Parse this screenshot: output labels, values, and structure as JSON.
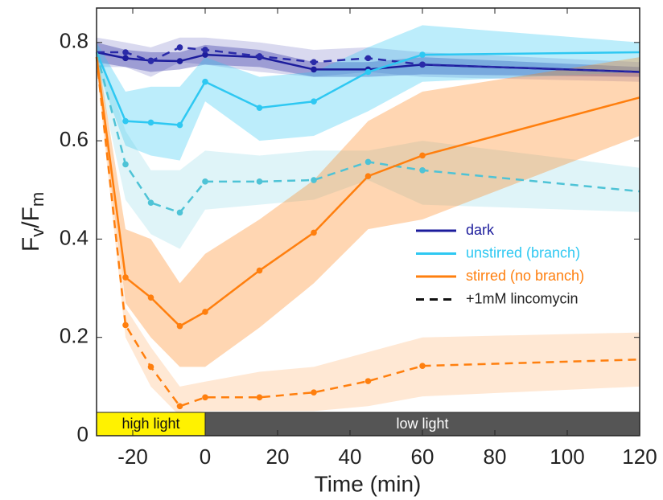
{
  "chart_data": {
    "type": "line",
    "xlabel": "Time (min)",
    "ylabel": [
      "F",
      "v",
      "/F",
      "m"
    ],
    "xlim": [
      -30,
      120
    ],
    "ylim": [
      0,
      0.87
    ],
    "xticks": [
      -20,
      0,
      20,
      40,
      60,
      80,
      100,
      120
    ],
    "yticks": [
      0,
      0.2,
      0.4,
      0.6,
      0.8
    ],
    "grid": false,
    "legend": "center right",
    "dashed_legend_label": "+1mM lincomycin",
    "series": [
      {
        "name": "dark",
        "color": "#1c1c9c",
        "dashed": false,
        "x": [
          -30,
          -22,
          -15,
          -7,
          0,
          15,
          30,
          45,
          60,
          120
        ],
        "values": [
          0.78,
          0.768,
          0.763,
          0.762,
          0.775,
          0.77,
          0.745,
          0.745,
          0.755,
          0.74
        ],
        "lower": [
          0.76,
          0.75,
          0.74,
          0.745,
          0.755,
          0.75,
          0.73,
          0.73,
          0.735,
          0.73
        ],
        "upper": [
          0.8,
          0.785,
          0.78,
          0.78,
          0.795,
          0.785,
          0.76,
          0.76,
          0.77,
          0.75
        ]
      },
      {
        "name": "dark",
        "color": "#2a2aa8",
        "dashed": true,
        "x": [
          -30,
          -22,
          -15,
          -7,
          0,
          15,
          30,
          45,
          60,
          120
        ],
        "values": [
          0.78,
          0.78,
          0.762,
          0.79,
          0.785,
          0.772,
          0.76,
          0.768,
          0.755,
          0.74
        ],
        "lower": [
          0.75,
          0.75,
          0.73,
          0.76,
          0.755,
          0.74,
          0.73,
          0.74,
          0.73,
          0.72
        ],
        "upper": [
          0.81,
          0.8,
          0.79,
          0.81,
          0.81,
          0.8,
          0.785,
          0.79,
          0.78,
          0.76
        ]
      },
      {
        "name": "unstirred (branch)",
        "color": "#2ec8f2",
        "dashed": false,
        "x": [
          -30,
          -22,
          -15,
          -7,
          0,
          15,
          30,
          45,
          60,
          120
        ],
        "values": [
          0.78,
          0.64,
          0.637,
          0.632,
          0.72,
          0.667,
          0.68,
          0.74,
          0.775,
          0.78
        ],
        "lower": [
          0.75,
          0.59,
          0.57,
          0.56,
          0.68,
          0.6,
          0.61,
          0.66,
          0.72,
          0.74
        ],
        "upper": [
          0.8,
          0.7,
          0.71,
          0.71,
          0.77,
          0.73,
          0.74,
          0.79,
          0.835,
          0.8
        ]
      },
      {
        "name": "unstirred (branch)",
        "color": "#4ec3d6",
        "dashed": true,
        "x": [
          -30,
          -22,
          -15,
          -7,
          0,
          15,
          30,
          45,
          60,
          120
        ],
        "values": [
          0.78,
          0.552,
          0.474,
          0.454,
          0.517,
          0.517,
          0.52,
          0.557,
          0.54,
          0.497
        ],
        "lower": [
          0.75,
          0.48,
          0.41,
          0.38,
          0.46,
          0.47,
          0.48,
          0.52,
          0.47,
          0.455
        ],
        "upper": [
          0.8,
          0.62,
          0.54,
          0.54,
          0.58,
          0.57,
          0.58,
          0.58,
          0.6,
          0.545
        ]
      },
      {
        "name": "stirred (no branch)",
        "color": "#ff7f0e",
        "dashed": false,
        "x": [
          -30,
          -22,
          -15,
          -7,
          0,
          15,
          30,
          45,
          60,
          120
        ],
        "values": [
          0.77,
          0.322,
          0.281,
          0.223,
          0.252,
          0.336,
          0.413,
          0.528,
          0.57,
          0.688
        ],
        "lower": [
          0.75,
          0.27,
          0.2,
          0.14,
          0.14,
          0.22,
          0.31,
          0.42,
          0.44,
          0.61
        ],
        "upper": [
          0.79,
          0.42,
          0.4,
          0.31,
          0.37,
          0.44,
          0.52,
          0.64,
          0.7,
          0.77
        ]
      },
      {
        "name": "stirred (no branch)",
        "color": "#ff7f0e",
        "dashed": true,
        "x": [
          -30,
          -22,
          -15,
          -7,
          0,
          15,
          30,
          45,
          60,
          120
        ],
        "values": [
          0.77,
          0.225,
          0.14,
          0.06,
          0.078,
          0.078,
          0.088,
          0.111,
          0.142,
          0.155
        ],
        "lower": [
          0.75,
          0.2,
          0.1,
          0.04,
          0.05,
          0.05,
          0.05,
          0.06,
          0.08,
          0.1
        ],
        "upper": [
          0.79,
          0.26,
          0.18,
          0.1,
          0.11,
          0.13,
          0.14,
          0.17,
          0.2,
          0.21
        ]
      }
    ],
    "annotations": [
      {
        "label": "high light",
        "x0": -30,
        "x1": 0,
        "color": "#fff200",
        "text_color": "#111111"
      },
      {
        "label": "low light",
        "x0": 0,
        "x1": 120,
        "color": "#555555",
        "text_color": "#ffffff"
      }
    ]
  }
}
